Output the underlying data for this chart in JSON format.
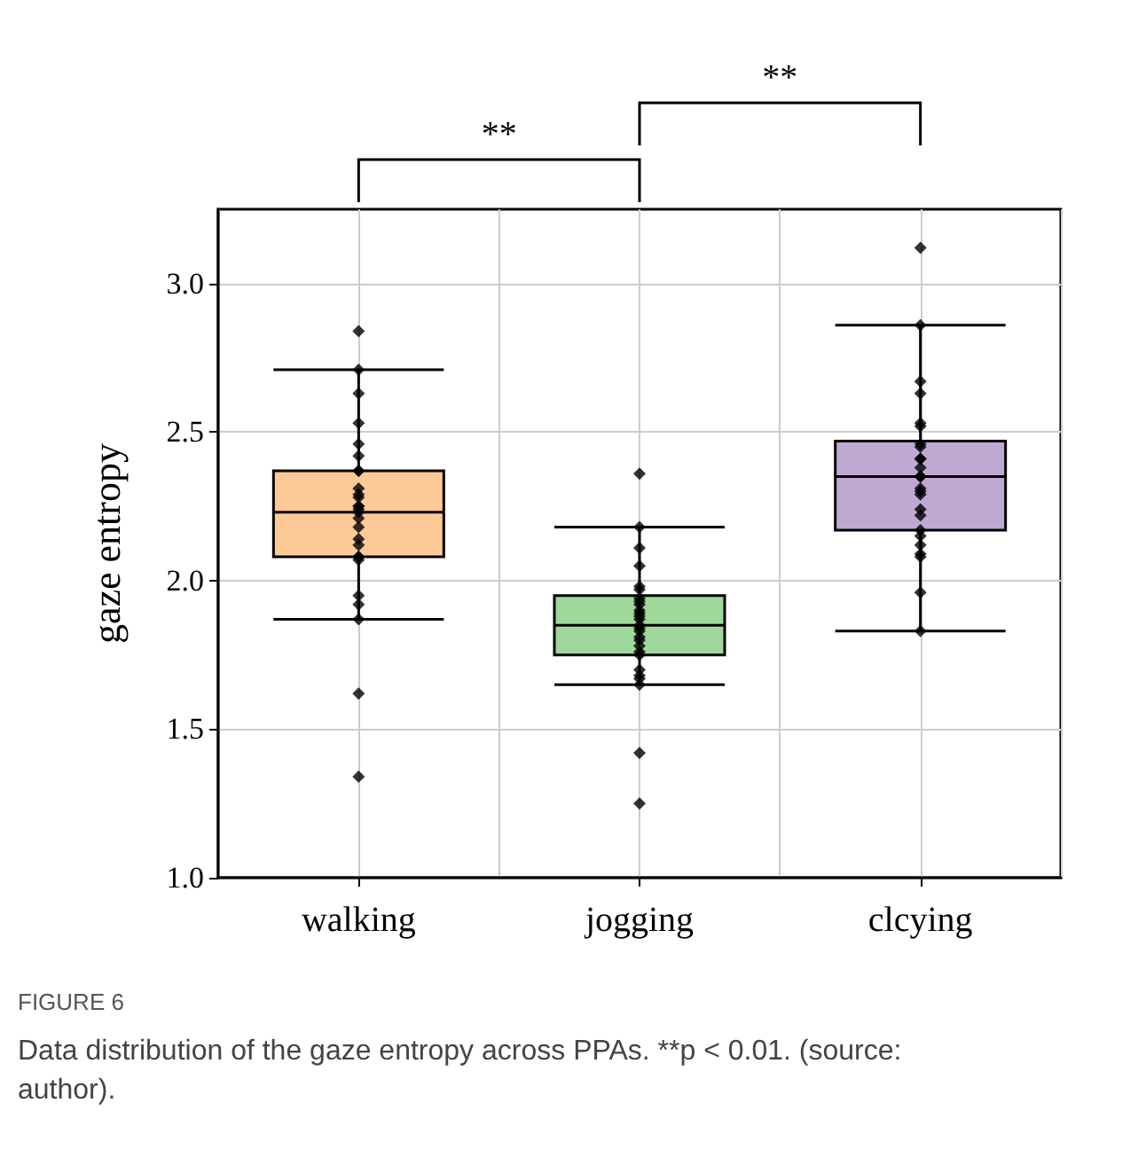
{
  "chart_data": {
    "type": "box",
    "ylabel": "gaze entropy",
    "categories": [
      "walking",
      "jogging",
      "clcying"
    ],
    "ylim": [
      1.0,
      3.25
    ],
    "yticks": [
      {
        "value": 1.0,
        "label": "1.0"
      },
      {
        "value": 1.5,
        "label": "1.5"
      },
      {
        "value": 2.0,
        "label": "2.0"
      },
      {
        "value": 2.5,
        "label": "2.5"
      },
      {
        "value": 3.0,
        "label": "3.0"
      }
    ],
    "grid": true,
    "marker": "diamond",
    "annotations": [
      "**",
      "**",
      "FIGURE 6",
      "Data distribution of the gaze entropy across PPAs. **p < 0.01. (source: author)."
    ],
    "series": [
      {
        "type": "box",
        "colors": [
          "#fdc997",
          "#9fd89b",
          "#bfa9d3"
        ],
        "boxes": [
          {
            "low": 1.87,
            "q1": 2.08,
            "median": 2.23,
            "q3": 2.37,
            "high": 2.71
          },
          {
            "low": 1.65,
            "q1": 1.75,
            "median": 1.85,
            "q3": 1.95,
            "high": 2.18
          },
          {
            "low": 1.83,
            "q1": 2.17,
            "median": 2.35,
            "q3": 2.47,
            "high": 2.86
          }
        ]
      },
      {
        "type": "scatter",
        "color": "#000000",
        "x": [
          "walking",
          "walking",
          "walking",
          "walking",
          "walking",
          "walking",
          "walking",
          "walking",
          "walking",
          "walking",
          "walking",
          "walking",
          "walking",
          "walking",
          "walking",
          "walking",
          "walking",
          "walking",
          "walking",
          "walking",
          "walking",
          "walking",
          "walking",
          "walking",
          "walking",
          "walking",
          "walking",
          "jogging",
          "jogging",
          "jogging",
          "jogging",
          "jogging",
          "jogging",
          "jogging",
          "jogging",
          "jogging",
          "jogging",
          "jogging",
          "jogging",
          "jogging",
          "jogging",
          "jogging",
          "jogging",
          "jogging",
          "jogging",
          "jogging",
          "jogging",
          "jogging",
          "jogging",
          "jogging",
          "jogging",
          "jogging",
          "jogging",
          "jogging",
          "clcying",
          "clcying",
          "clcying",
          "clcying",
          "clcying",
          "clcying",
          "clcying",
          "clcying",
          "clcying",
          "clcying",
          "clcying",
          "clcying",
          "clcying",
          "clcying",
          "clcying",
          "clcying",
          "clcying",
          "clcying",
          "clcying",
          "clcying",
          "clcying",
          "clcying",
          "clcying",
          "clcying",
          "clcying",
          "clcying"
        ],
        "values": [
          2.84,
          2.71,
          2.63,
          2.53,
          2.46,
          2.42,
          2.37,
          2.37,
          2.31,
          2.29,
          2.28,
          2.25,
          2.25,
          2.24,
          2.23,
          2.21,
          2.18,
          2.14,
          2.12,
          2.08,
          2.08,
          2.07,
          1.95,
          1.92,
          1.87,
          1.62,
          1.34,
          2.36,
          2.18,
          2.11,
          2.05,
          1.98,
          1.97,
          1.94,
          1.93,
          1.92,
          1.9,
          1.89,
          1.88,
          1.87,
          1.85,
          1.84,
          1.83,
          1.81,
          1.8,
          1.78,
          1.76,
          1.75,
          1.7,
          1.68,
          1.67,
          1.65,
          1.42,
          1.25,
          3.12,
          2.86,
          2.67,
          2.63,
          2.53,
          2.52,
          2.46,
          2.45,
          2.41,
          2.41,
          2.38,
          2.35,
          2.35,
          2.35,
          2.31,
          2.3,
          2.29,
          2.24,
          2.22,
          2.17,
          2.15,
          2.12,
          2.09,
          2.08,
          1.96,
          1.83
        ]
      }
    ]
  }
}
